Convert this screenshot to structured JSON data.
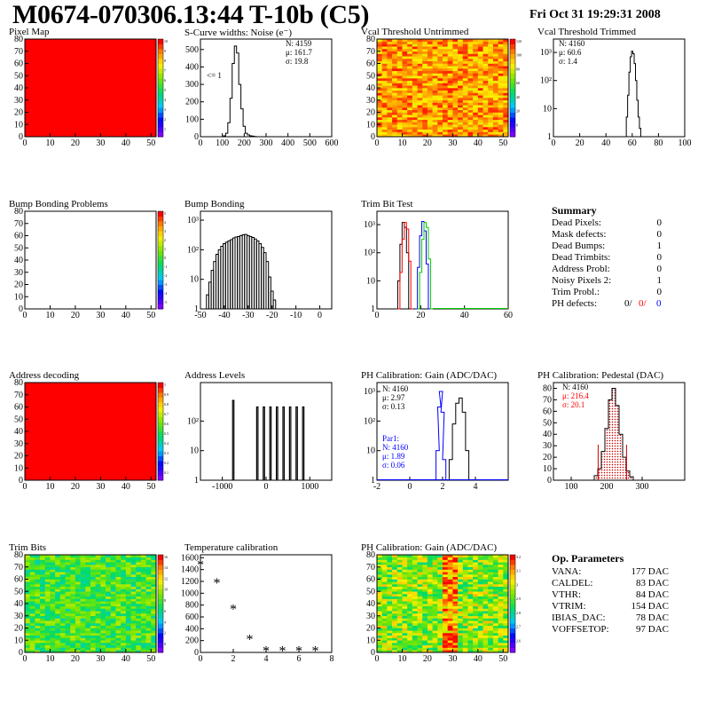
{
  "header": {
    "title": "M0674-070306.13:44 T-10b (C5)",
    "date": "Fri Oct 31 19:29:31 2008"
  },
  "colors": {
    "red": "#ff0000",
    "blue": "#0000ff",
    "green": "#00cc00",
    "hist": "#000000",
    "pedestal_fill": "#cc0000"
  },
  "panels": {
    "pixel_map": {
      "title": "Pixel Map"
    },
    "scurve": {
      "title": "S-Curve widths: Noise (e⁻)",
      "stats": [
        "N: 4159",
        "μ: 161.7",
        "σ: 19.8"
      ],
      "underflow_label": "<= 1"
    },
    "vcal_untrimmed": {
      "title": "Vcal Threshold Untrimmed"
    },
    "vcal_trimmed": {
      "title": "Vcal Threshold Trimmed",
      "stats": [
        "N: 4160",
        "μ: 60.6",
        "σ:  1.4"
      ]
    },
    "bump_problems": {
      "title": "Bump Bonding Problems"
    },
    "bump_bonding": {
      "title": "Bump Bonding"
    },
    "trim_bit_test": {
      "title": "Trim Bit Test"
    },
    "address_decoding": {
      "title": "Address decoding"
    },
    "address_levels": {
      "title": "Address Levels"
    },
    "ph_gain": {
      "title": "PH Calibration: Gain (ADC/DAC)",
      "stats": [
        "N: 4160",
        "μ: 2.97",
        "σ: 0.13"
      ],
      "par1_stats": [
        "Par1:",
        "N:  4160",
        "μ:  1.89",
        "σ:  0.06"
      ]
    },
    "ph_pedestal": {
      "title": "PH Calibration: Pedestal (DAC)",
      "stats": [
        "N: 4160",
        "μ: 216.4",
        "σ: 20.1"
      ]
    },
    "trim_bits": {
      "title": "Trim Bits"
    },
    "temperature": {
      "title": "Temperature calibration"
    },
    "ph_gain_map": {
      "title": "PH Calibration: Gain (ADC/DAC)"
    }
  },
  "summary": {
    "title": "Summary",
    "rows": [
      {
        "label": "Dead Pixels:",
        "value": "0"
      },
      {
        "label": "Mask defects:",
        "value": "0"
      },
      {
        "label": "Dead Bumps:",
        "value": "1"
      },
      {
        "label": "Dead Trimbits:",
        "value": "0"
      },
      {
        "label": "Address Probl:",
        "value": "0"
      },
      {
        "label": "Noisy Pixels 2:",
        "value": "1"
      },
      {
        "label": "Trim Probl.:",
        "value": "0"
      }
    ],
    "ph_defects": {
      "label": "PH defects:",
      "values": [
        "0/",
        "0/",
        "0"
      ]
    }
  },
  "op_params": {
    "title": "Op. Parameters",
    "rows": [
      {
        "label": "VANA:",
        "value": "177 DAC"
      },
      {
        "label": "CALDEL:",
        "value": "83 DAC"
      },
      {
        "label": "VTHR:",
        "value": "84 DAC"
      },
      {
        "label": "VTRIM:",
        "value": "154 DAC"
      },
      {
        "label": "IBIAS_DAC:",
        "value": "78 DAC"
      },
      {
        "label": "VOFFSETOP:",
        "value": "97 DAC"
      }
    ]
  },
  "chart_data": [
    {
      "id": "pixel_map",
      "type": "heatmap",
      "title": "Pixel Map",
      "xlim": [
        0,
        52
      ],
      "ylim": [
        0,
        80
      ],
      "xticks": [
        "0",
        "10",
        "20",
        "30",
        "40",
        "50"
      ],
      "yticks": [
        "0",
        "10",
        "20",
        "30",
        "40",
        "50",
        "60",
        "70",
        "80"
      ],
      "uniform_value": 10,
      "zticks": [
        "1",
        "2",
        "3",
        "4",
        "5",
        "6",
        "7",
        "8",
        "9",
        "10"
      ]
    },
    {
      "id": "scurve",
      "type": "bar",
      "title": "S-Curve widths: Noise (e⁻)",
      "xlim": [
        0,
        600
      ],
      "ylim": [
        0,
        560
      ],
      "xticks": [
        "0",
        "100",
        "200",
        "300",
        "400",
        "500",
        "600"
      ],
      "yticks": [
        "0",
        "100",
        "200",
        "300",
        "400",
        "500"
      ],
      "x": [
        110,
        120,
        130,
        140,
        150,
        160,
        170,
        180,
        190,
        200,
        210,
        220,
        230,
        240,
        250
      ],
      "values": [
        5,
        20,
        80,
        220,
        420,
        520,
        480,
        300,
        160,
        60,
        20,
        10,
        5,
        3,
        1
      ]
    },
    {
      "id": "vcal_untrimmed",
      "type": "heatmap",
      "title": "Vcal Threshold Untrimmed",
      "xlim": [
        0,
        52
      ],
      "ylim": [
        0,
        80
      ],
      "xticks": [
        "0",
        "10",
        "20",
        "30",
        "40",
        "50"
      ],
      "yticks": [
        "0",
        "10",
        "20",
        "30",
        "40",
        "50",
        "60",
        "70",
        "80"
      ],
      "zticks": [
        "0",
        "20",
        "40",
        "60",
        "80",
        "100",
        "120"
      ]
    },
    {
      "id": "vcal_trimmed",
      "type": "bar",
      "title": "Vcal Threshold Trimmed",
      "xlim": [
        0,
        100
      ],
      "log_y": true,
      "xticks": [
        "0",
        "20",
        "40",
        "60",
        "80",
        "100"
      ],
      "yticks": [
        "1",
        "10",
        "10²",
        "10³"
      ],
      "x": [
        55,
        56,
        57,
        58,
        59,
        60,
        61,
        62,
        63,
        64,
        65,
        66,
        67
      ],
      "values": [
        1,
        5,
        30,
        200,
        700,
        1100,
        900,
        400,
        100,
        20,
        5,
        2,
        1
      ]
    },
    {
      "id": "bump_problems",
      "type": "heatmap",
      "title": "Bump Bonding Problems",
      "xlim": [
        0,
        52
      ],
      "ylim": [
        0,
        80
      ],
      "xticks": [
        "0",
        "10",
        "20",
        "30",
        "40",
        "50"
      ],
      "yticks": [
        "0",
        "10",
        "20",
        "30",
        "40",
        "50",
        "60",
        "70",
        "80"
      ],
      "zticks": [
        "-5",
        "-4",
        "-3",
        "-2",
        "-1",
        "0",
        "1",
        "2",
        "3",
        "4",
        "5"
      ]
    },
    {
      "id": "bump_bonding",
      "type": "bar",
      "title": "Bump Bonding",
      "xlim": [
        -50,
        5
      ],
      "log_y": true,
      "xticks": [
        "-50",
        "-40",
        "-30",
        "-20",
        "-10",
        "0"
      ],
      "yticks": [
        "1",
        "10",
        "10²",
        "10³"
      ],
      "x": [
        -48,
        -47,
        -46,
        -45,
        -44,
        -43,
        -42,
        -41,
        -40,
        -39,
        -38,
        -37,
        -36,
        -35,
        -34,
        -33,
        -32,
        -31,
        -30,
        -29,
        -28,
        -27,
        -26,
        -25,
        -24,
        -23,
        -22,
        -21,
        -20,
        -19,
        -18,
        -3
      ],
      "values": [
        1,
        3,
        8,
        20,
        40,
        70,
        100,
        130,
        160,
        180,
        200,
        220,
        250,
        270,
        280,
        300,
        320,
        330,
        300,
        280,
        260,
        230,
        200,
        160,
        120,
        80,
        40,
        12,
        4,
        2,
        1,
        1
      ]
    },
    {
      "id": "trim_bit_test",
      "type": "line",
      "title": "Trim Bit Test",
      "xlim": [
        0,
        60
      ],
      "log_y": true,
      "xticks": [
        "0",
        "20",
        "40",
        "60"
      ],
      "yticks": [
        "1",
        "10",
        "10²",
        "10³"
      ],
      "series": [
        {
          "color": "#000000",
          "x": [
            9,
            10,
            11,
            12,
            13,
            14,
            15
          ],
          "values": [
            1,
            10,
            200,
            1200,
            800,
            100,
            1
          ]
        },
        {
          "color": "#ff0000",
          "x": [
            10,
            11,
            12,
            13,
            14,
            15,
            16
          ],
          "values": [
            1,
            20,
            300,
            1200,
            700,
            50,
            1
          ]
        },
        {
          "color": "#0000ff",
          "x": [
            18,
            19,
            20,
            21,
            22,
            23,
            24
          ],
          "values": [
            1,
            30,
            400,
            1300,
            600,
            40,
            1
          ]
        },
        {
          "color": "#00cc00",
          "x": [
            19,
            20,
            21,
            22,
            23,
            24,
            25
          ],
          "values": [
            1,
            20,
            300,
            1200,
            800,
            60,
            1
          ]
        }
      ]
    },
    {
      "id": "address_decoding",
      "type": "heatmap",
      "title": "Address decoding",
      "xlim": [
        0,
        52
      ],
      "ylim": [
        0,
        80
      ],
      "xticks": [
        "0",
        "10",
        "20",
        "30",
        "40",
        "50"
      ],
      "yticks": [
        "0",
        "10",
        "20",
        "30",
        "40",
        "50",
        "60",
        "70",
        "80"
      ],
      "uniform_value": 1,
      "zticks": [
        "0.1",
        "0.2",
        "0.3",
        "0.4",
        "0.5",
        "0.6",
        "0.7",
        "0.8",
        "0.9",
        "1"
      ]
    },
    {
      "id": "address_levels",
      "type": "bar",
      "title": "Address Levels",
      "xlim": [
        -1500,
        1500
      ],
      "log_y": true,
      "xticks": [
        "-1000",
        "0",
        "1000"
      ],
      "yticks": [
        "1",
        "10",
        "10²"
      ],
      "x": [
        -750,
        -200,
        -50,
        100,
        250,
        400,
        550,
        700,
        850
      ],
      "values": [
        500,
        300,
        300,
        300,
        300,
        300,
        300,
        300,
        300
      ]
    },
    {
      "id": "ph_gain",
      "type": "bar",
      "title": "PH Calibration: Gain (ADC/DAC)",
      "xlim": [
        -2,
        6
      ],
      "log_y": true,
      "xticks": [
        "-2",
        "0",
        "2",
        "4"
      ],
      "yticks": [
        "1",
        "10",
        "10²",
        "10³"
      ],
      "series": [
        {
          "name": "",
          "color": "#000000",
          "x": [
            2.5,
            2.7,
            2.9,
            3.1,
            3.3,
            3.5
          ],
          "values": [
            5,
            80,
            400,
            600,
            200,
            10
          ]
        },
        {
          "name": "Par1",
          "color": "#0000ff",
          "x": [
            1.7,
            1.8,
            1.9,
            2.0,
            2.1
          ],
          "values": [
            10,
            300,
            1000,
            200,
            5
          ]
        }
      ]
    },
    {
      "id": "ph_pedestal",
      "type": "bar",
      "title": "PH Calibration: Pedestal (DAC)",
      "xlim": [
        50,
        420
      ],
      "ylim": [
        0,
        85
      ],
      "xticks": [
        "100",
        "200",
        "300"
      ],
      "yticks": [
        "0",
        "10",
        "20",
        "30",
        "40",
        "50",
        "60",
        "70",
        "80"
      ],
      "x": [
        170,
        180,
        190,
        200,
        210,
        220,
        230,
        240,
        250,
        260,
        270
      ],
      "values": [
        4,
        10,
        25,
        45,
        70,
        80,
        65,
        40,
        20,
        8,
        3
      ]
    },
    {
      "id": "trim_bits",
      "type": "heatmap",
      "title": "Trim Bits",
      "xlim": [
        0,
        52
      ],
      "ylim": [
        0,
        80
      ],
      "xticks": [
        "0",
        "10",
        "20",
        "30",
        "40",
        "50"
      ],
      "yticks": [
        "0",
        "10",
        "20",
        "30",
        "40",
        "50",
        "60",
        "70",
        "80"
      ],
      "zticks": [
        "0",
        "2",
        "4",
        "6",
        "8",
        "10",
        "12",
        "14",
        "16"
      ]
    },
    {
      "id": "temperature",
      "type": "scatter",
      "title": "Temperature calibration",
      "xlim": [
        0,
        8
      ],
      "ylim": [
        0,
        1650
      ],
      "xticks": [
        "0",
        "2",
        "4",
        "6",
        "8"
      ],
      "yticks": [
        "0",
        "200",
        "400",
        "600",
        "800",
        "1000",
        "1200",
        "1400",
        "1600"
      ],
      "x": [
        0,
        1,
        2,
        3,
        4,
        5,
        6,
        7
      ],
      "values": [
        1480,
        1170,
        730,
        220,
        20,
        20,
        20,
        20
      ]
    },
    {
      "id": "ph_gain_map",
      "type": "heatmap",
      "title": "PH Calibration: Gain (ADC/DAC)",
      "xlim": [
        0,
        52
      ],
      "ylim": [
        0,
        80
      ],
      "xticks": [
        "0",
        "10",
        "20",
        "30",
        "40",
        "50"
      ],
      "yticks": [
        "0",
        "10",
        "20",
        "30",
        "40",
        "50",
        "60",
        "70",
        "80"
      ],
      "zticks": [
        "2.6",
        "2.7",
        "2.8",
        "2.9",
        "3",
        "3.1",
        "3.2"
      ]
    }
  ]
}
